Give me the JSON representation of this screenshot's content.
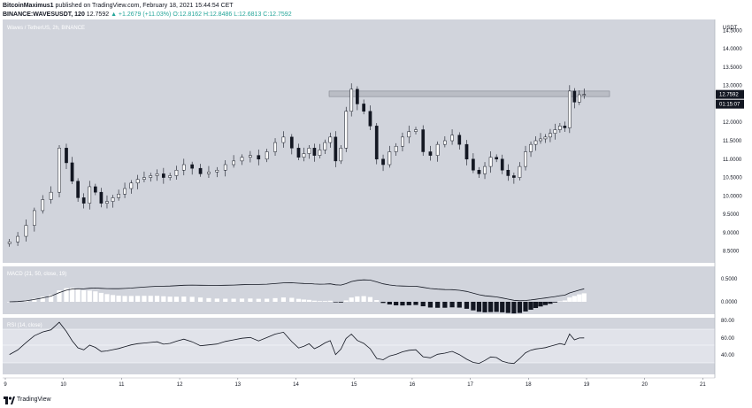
{
  "header": {
    "author": "BitcoinMaximus1",
    "published_text": "published on TradingView.com, February 18, 2021 15:44:54 CET",
    "symbol": "BINANCE:WAVESUSDT, 120",
    "last": "12.7592",
    "change": "▲ +1.2679 (+11.03%)",
    "ohlc": "O:12.8162 H:12.8486 L:12.6813 C:12.7592"
  },
  "pane_title": "Waves / TetherUS, 2h, BINANCE",
  "currency": "USDT",
  "price_axis_labels": [
    "14.5000",
    "14.0000",
    "13.5000",
    "13.0000",
    "12.5000",
    "12.0000",
    "11.5000",
    "11.0000",
    "10.5000",
    "10.0000",
    "9.5000",
    "9.0000",
    "8.5000"
  ],
  "last_price_label": "12.7592",
  "countdown_label": "01:15:07",
  "macd": {
    "title": "MACD (21, 50, close, 19)",
    "axis_labels": [
      "0.5000",
      "0.0000"
    ]
  },
  "rsi": {
    "title": "RSI (14, close)",
    "axis_labels": [
      "80.00",
      "60.00",
      "40.00"
    ]
  },
  "time_labels": [
    "9",
    "10",
    "11",
    "12",
    "13",
    "14",
    "15",
    "16",
    "17",
    "18",
    "19",
    "20",
    "21"
  ],
  "footer": {
    "brand": "TradingView"
  },
  "colors": {
    "pane_bg": "#d1d4dc",
    "up": "#ffffff",
    "down": "#131722",
    "line": "#131722",
    "resistance": "#b2b5be"
  },
  "chart_data": {
    "type": "candlestick",
    "title": "Waves / TetherUS, 2h, BINANCE",
    "ylabel": "USDT",
    "ylim": [
      8.3,
      14.7
    ],
    "x_range": [
      "9",
      "21"
    ],
    "resistance_zone": [
      12.7,
      12.85
    ],
    "anchors": [
      [
        "9",
        8.75
      ],
      [
        "9",
        8.9
      ],
      [
        "9",
        9.2
      ],
      [
        "9",
        9.6
      ],
      [
        "9",
        9.9
      ],
      [
        "9",
        10.1
      ],
      [
        "9",
        11.3
      ],
      [
        "10",
        10.9
      ],
      [
        "10",
        10.4
      ],
      [
        "10",
        9.95
      ],
      [
        "10",
        9.8
      ],
      [
        "10",
        10.25
      ],
      [
        "10",
        10.1
      ],
      [
        "10",
        9.8
      ],
      [
        "10",
        9.85
      ],
      [
        "10",
        9.95
      ],
      [
        "10",
        10.05
      ],
      [
        "11",
        10.2
      ],
      [
        "11",
        10.35
      ],
      [
        "11",
        10.45
      ],
      [
        "11",
        10.5
      ],
      [
        "11",
        10.55
      ],
      [
        "11",
        10.6
      ],
      [
        "11",
        10.5
      ],
      [
        "11",
        10.55
      ],
      [
        "11",
        10.7
      ],
      [
        "12",
        10.85
      ],
      [
        "12",
        10.75
      ],
      [
        "12",
        10.6
      ],
      [
        "12",
        10.65
      ],
      [
        "12",
        10.7
      ],
      [
        "12",
        10.85
      ],
      [
        "12",
        10.95
      ],
      [
        "13",
        11.05
      ],
      [
        "13",
        11.1
      ],
      [
        "13",
        11.0
      ],
      [
        "13",
        11.2
      ],
      [
        "13",
        11.45
      ],
      [
        "13",
        11.6
      ],
      [
        "13",
        11.3
      ],
      [
        "14",
        11.05
      ],
      [
        "14",
        11.15
      ],
      [
        "14",
        11.3
      ],
      [
        "14",
        11.1
      ],
      [
        "14",
        11.25
      ],
      [
        "14",
        11.45
      ],
      [
        "14",
        11.6
      ],
      [
        "14",
        10.95
      ],
      [
        "14",
        11.3
      ],
      [
        "14",
        12.3
      ],
      [
        "14",
        12.9
      ],
      [
        "15",
        12.5
      ],
      [
        "15",
        12.3
      ],
      [
        "15",
        11.9
      ],
      [
        "15",
        11.0
      ],
      [
        "15",
        10.85
      ],
      [
        "15",
        11.2
      ],
      [
        "15",
        11.35
      ],
      [
        "15",
        11.6
      ],
      [
        "15",
        11.75
      ],
      [
        "16",
        11.8
      ],
      [
        "16",
        11.2
      ],
      [
        "16",
        11.1
      ],
      [
        "16",
        11.4
      ],
      [
        "16",
        11.5
      ],
      [
        "16",
        11.65
      ],
      [
        "16",
        11.4
      ],
      [
        "16",
        11.0
      ],
      [
        "17",
        10.7
      ],
      [
        "17",
        10.6
      ],
      [
        "17",
        10.8
      ],
      [
        "17",
        11.05
      ],
      [
        "17",
        11.0
      ],
      [
        "17",
        10.7
      ],
      [
        "17",
        10.55
      ],
      [
        "17",
        10.5
      ],
      [
        "17",
        10.8
      ],
      [
        "17",
        11.2
      ],
      [
        "18",
        11.4
      ],
      [
        "18",
        11.5
      ],
      [
        "18",
        11.55
      ],
      [
        "18",
        11.6
      ],
      [
        "18",
        11.7
      ],
      [
        "18",
        11.8
      ],
      [
        "18",
        11.9
      ],
      [
        "18",
        11.85
      ],
      [
        "18",
        12.85
      ],
      [
        "18",
        12.55
      ],
      [
        "18",
        12.75
      ],
      [
        "18",
        12.7592
      ]
    ]
  }
}
